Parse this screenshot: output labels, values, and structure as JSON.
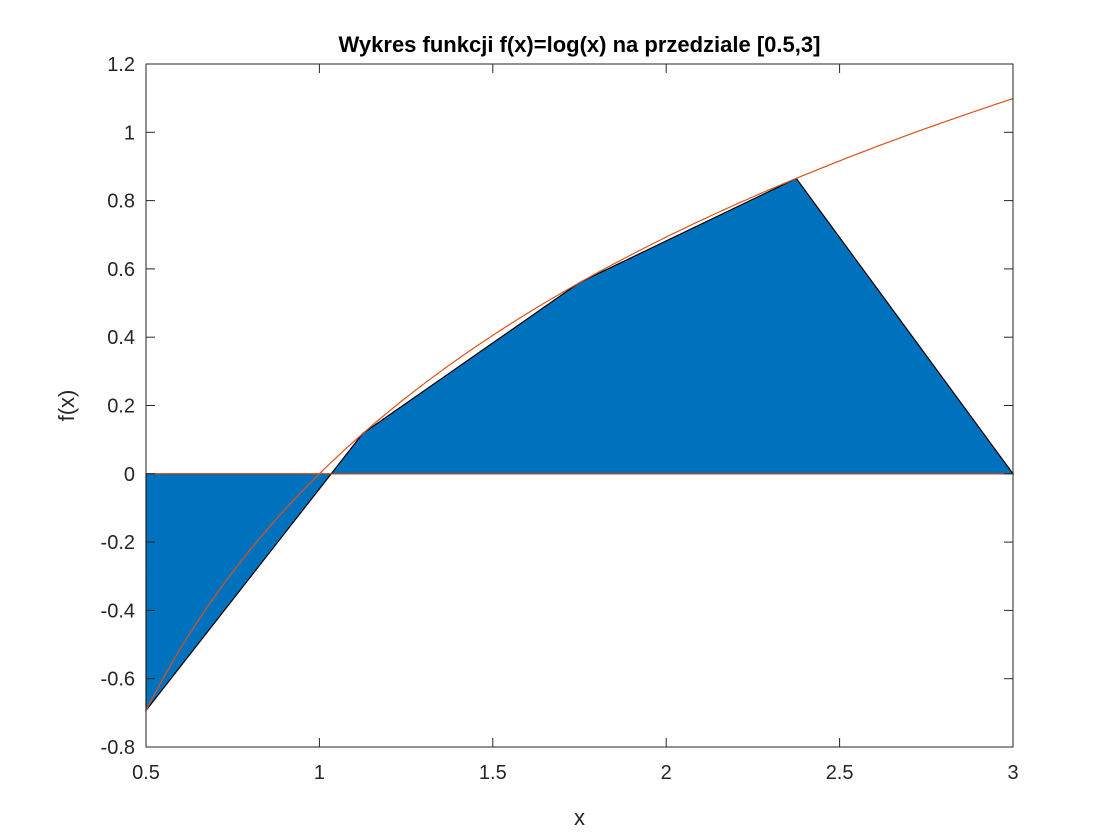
{
  "chart_data": {
    "type": "area",
    "title": "Wykres funkcji f(x)=log(x) na przedziale [0.5,3]",
    "xlabel": "x",
    "ylabel": "f(x)",
    "xlim": [
      0.5,
      3
    ],
    "ylim": [
      -0.8,
      1.2
    ],
    "xticks": [
      0.5,
      1,
      1.5,
      2,
      2.5,
      3
    ],
    "xtick_labels": [
      "0.5",
      "1",
      "1.5",
      "2",
      "2.5",
      "3"
    ],
    "yticks": [
      -0.8,
      -0.6,
      -0.4,
      -0.2,
      0,
      0.2,
      0.4,
      0.6,
      0.8,
      1,
      1.2
    ],
    "ytick_labels": [
      "-0.8",
      "-0.6",
      "-0.4",
      "-0.2",
      "0",
      "0.2",
      "0.4",
      "0.6",
      "0.8",
      "1",
      "1.2"
    ],
    "grid": false,
    "series": [
      {
        "style": "filled-polygon",
        "color": "#0072BD",
        "edge_color": "#000000",
        "x": [
          0.5,
          1.125,
          1.75,
          2.375,
          3,
          0.5
        ],
        "y": [
          -0.693,
          0.118,
          0.56,
          0.865,
          0,
          0
        ]
      },
      {
        "style": "curve",
        "color": "#D95319",
        "function": "log(x)",
        "x_range": [
          0.5,
          3
        ]
      },
      {
        "style": "baseline",
        "color": "#D95319",
        "x": [
          0.5,
          3
        ],
        "y": [
          0,
          0
        ]
      }
    ]
  }
}
